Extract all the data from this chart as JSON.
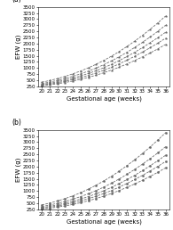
{
  "weeks": [
    20,
    21,
    22,
    23,
    24,
    25,
    26,
    27,
    28,
    29,
    30,
    31,
    32,
    33,
    34,
    35,
    36
  ],
  "panel_a": {
    "p5": [
      270,
      310,
      355,
      405,
      465,
      535,
      615,
      705,
      805,
      915,
      1035,
      1165,
      1305,
      1455,
      1615,
      1785,
      1965
    ],
    "p25": [
      295,
      340,
      395,
      455,
      525,
      605,
      695,
      795,
      905,
      1030,
      1170,
      1320,
      1480,
      1650,
      1830,
      2020,
      2220
    ],
    "p50": [
      325,
      375,
      435,
      505,
      585,
      675,
      775,
      885,
      1010,
      1150,
      1305,
      1470,
      1645,
      1835,
      2035,
      2245,
      2465
    ],
    "p75": [
      360,
      420,
      490,
      570,
      660,
      760,
      870,
      995,
      1135,
      1290,
      1460,
      1645,
      1840,
      2050,
      2270,
      2505,
      2755
    ],
    "p95": [
      415,
      485,
      565,
      655,
      760,
      875,
      1005,
      1150,
      1310,
      1485,
      1675,
      1880,
      2100,
      2335,
      2585,
      2850,
      3130
    ]
  },
  "panel_b": {
    "p5": [
      255,
      295,
      340,
      390,
      450,
      520,
      600,
      690,
      790,
      900,
      1020,
      1150,
      1290,
      1440,
      1600,
      1770,
      1950
    ],
    "p25": [
      285,
      330,
      385,
      445,
      515,
      595,
      685,
      785,
      895,
      1020,
      1160,
      1310,
      1470,
      1640,
      1820,
      2010,
      2210
    ],
    "p50": [
      320,
      370,
      430,
      500,
      580,
      670,
      770,
      885,
      1010,
      1150,
      1305,
      1470,
      1645,
      1835,
      2035,
      2245,
      2465
    ],
    "p75": [
      365,
      425,
      495,
      575,
      665,
      770,
      885,
      1015,
      1160,
      1320,
      1495,
      1685,
      1885,
      2100,
      2325,
      2565,
      2815
    ],
    "p95": [
      430,
      505,
      590,
      690,
      800,
      930,
      1075,
      1235,
      1410,
      1605,
      1815,
      2040,
      2280,
      2535,
      2805,
      3090,
      3390
    ]
  },
  "ylim": [
    250,
    3500
  ],
  "yticks": [
    250,
    500,
    750,
    1000,
    1250,
    1500,
    1750,
    2000,
    2250,
    2500,
    2750,
    3000,
    3250,
    3500
  ],
  "xticks": [
    20,
    21,
    22,
    23,
    24,
    25,
    26,
    27,
    28,
    29,
    30,
    31,
    32,
    33,
    34,
    35,
    36
  ],
  "marker_a": "*",
  "marker_b": "o",
  "line_color": "#666666",
  "background_color": "#ffffff",
  "ylabel": "EFW (g)",
  "xlabel": "Gestational age (weeks)",
  "title_a": "(a)",
  "title_b": "(b)",
  "tick_fontsize": 4.0,
  "label_fontsize": 5.0,
  "marker_size_a": 1.8,
  "marker_size_b": 1.6,
  "linewidth": 0.55
}
